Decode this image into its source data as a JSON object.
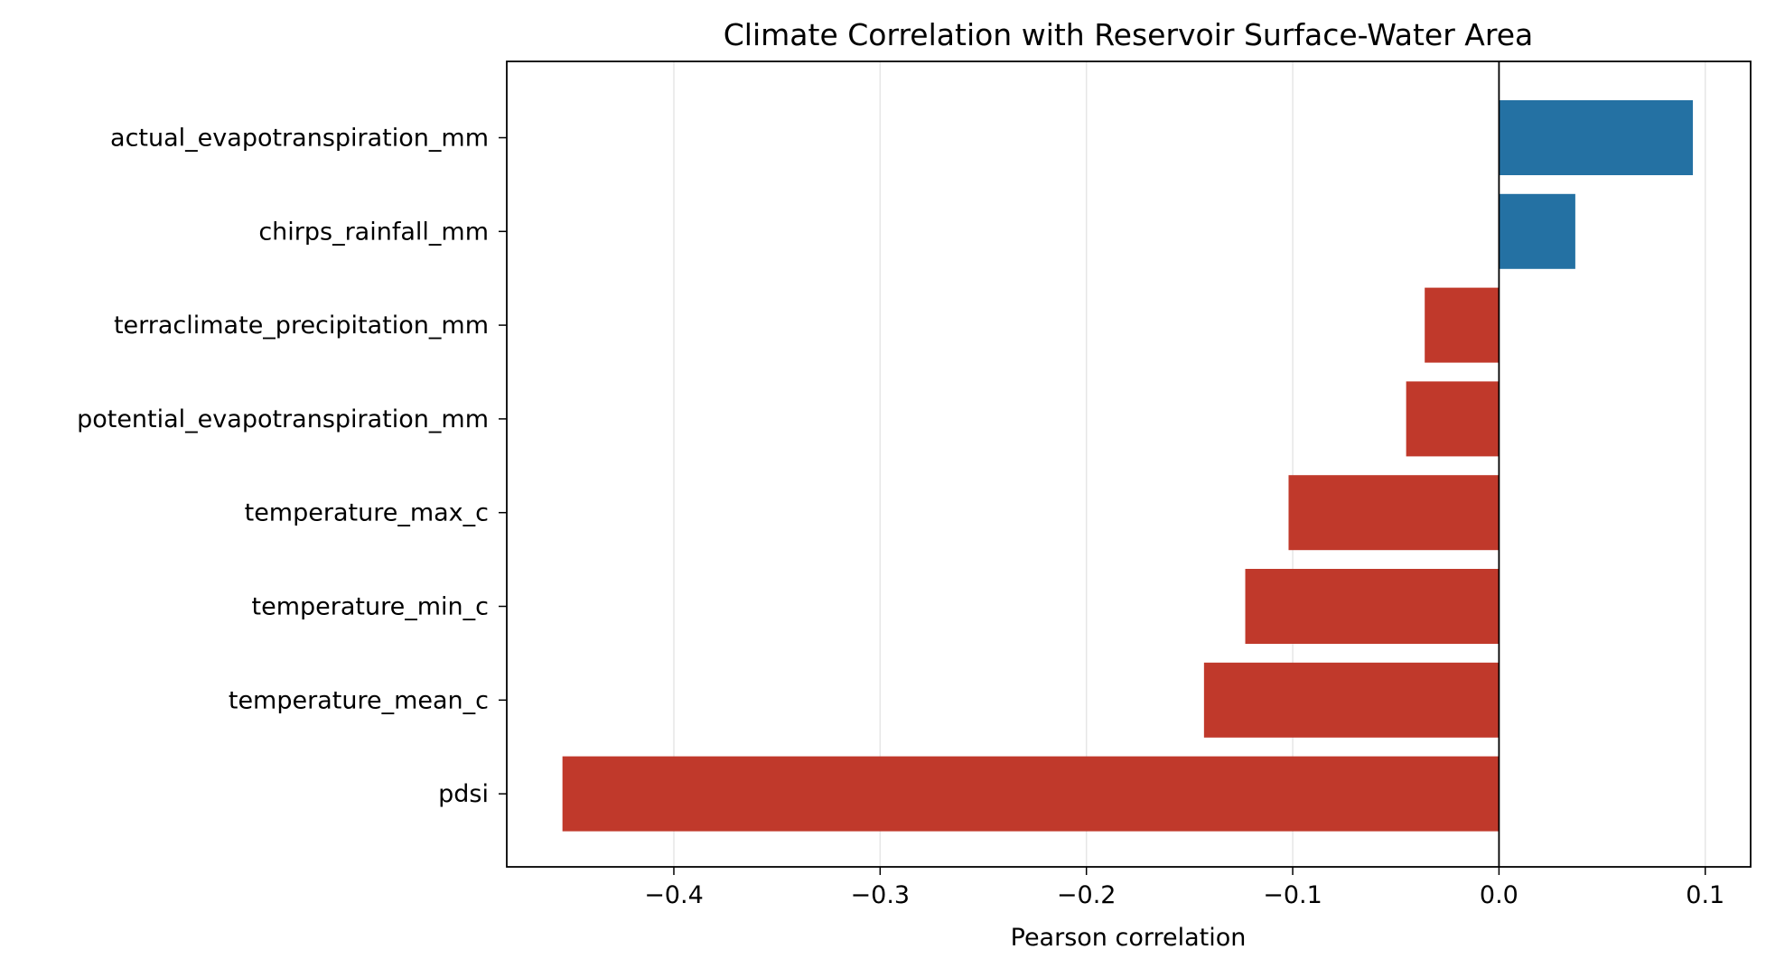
{
  "chart_data": {
    "type": "bar",
    "orientation": "horizontal",
    "title": "Climate Correlation with Reservoir Surface-Water Area",
    "xlabel": "Pearson correlation",
    "ylabel": "",
    "categories": [
      "actual_evapotranspiration_mm",
      "chirps_rainfall_mm",
      "terraclimate_precipitation_mm",
      "potential_evapotranspiration_mm",
      "temperature_max_c",
      "temperature_min_c",
      "temperature_mean_c",
      "pdsi"
    ],
    "values": [
      0.094,
      0.037,
      -0.036,
      -0.045,
      -0.102,
      -0.123,
      -0.143,
      -0.454
    ],
    "xlim": [
      -0.481,
      0.122
    ],
    "xticks": [
      -0.4,
      -0.3,
      -0.2,
      -0.1,
      0.0,
      0.1
    ],
    "xtick_labels": [
      "−0.4",
      "−0.3",
      "−0.2",
      "−0.1",
      "0.0",
      "0.1"
    ],
    "grid": "x",
    "colors": {
      "positive": "#2471a3",
      "negative": "#c0392b"
    }
  }
}
